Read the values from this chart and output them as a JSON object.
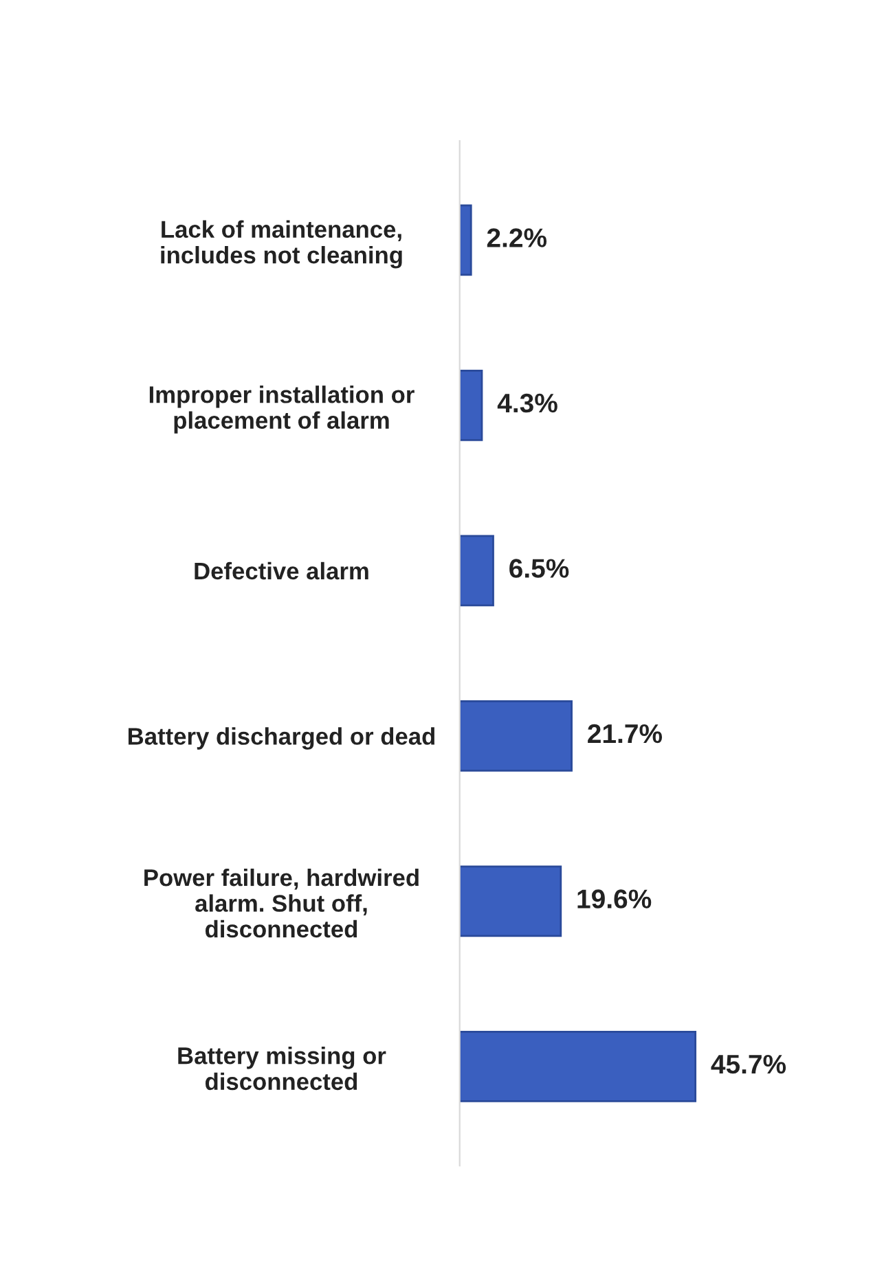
{
  "chart_data": {
    "type": "bar",
    "orientation": "horizontal",
    "tick_labels": "y",
    "categories": [
      "Lack of maintenance,\nincludes not cleaning",
      "Improper installation or\nplacement of alarm",
      "Defective alarm",
      "Battery discharged or dead",
      "Power failure, hardwired\nalarm. Shut off,\ndisconnected",
      "Battery missing or\ndisconnected"
    ],
    "values": [
      2.2,
      4.3,
      6.5,
      21.7,
      19.6,
      45.7
    ],
    "value_labels": [
      "2.2%",
      "4.3%",
      "6.5%",
      "21.7%",
      "19.6%",
      "45.7%"
    ],
    "color": "#3a5fbf"
  }
}
